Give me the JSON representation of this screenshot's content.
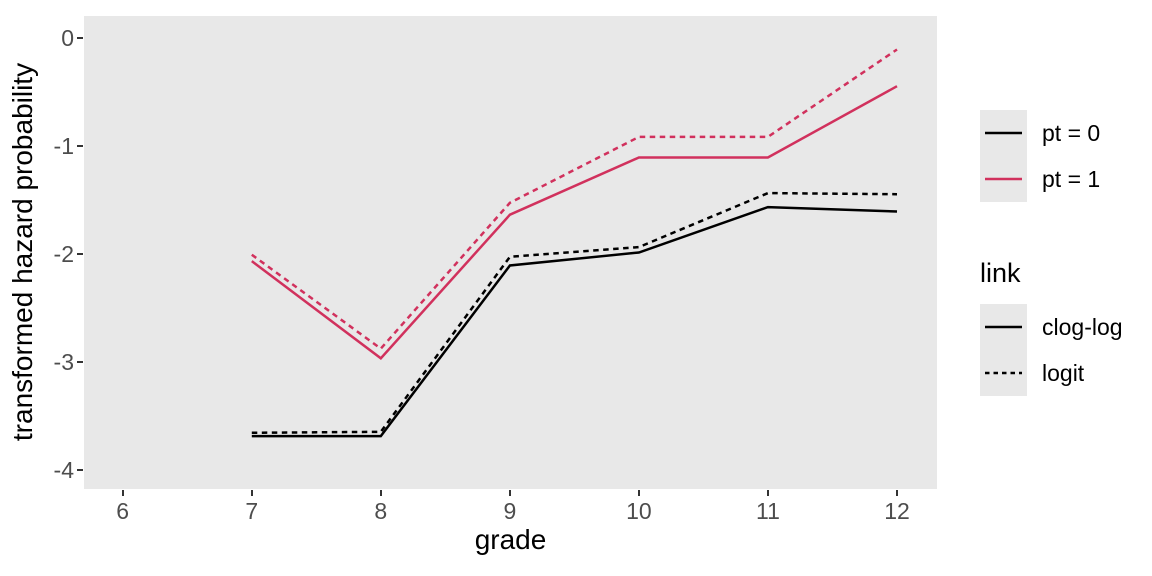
{
  "figure": {
    "background": "#FFFFFF",
    "panel_bg": "#E8E8E8",
    "tick_color": "#333333",
    "tick_label_color": "#4D4D4D",
    "black": "#000000",
    "red": "#D1315D"
  },
  "chart_data": {
    "type": "line",
    "title": "",
    "xlabel": "grade",
    "ylabel": "transformed hazard probability",
    "x": [
      7,
      8,
      9,
      10,
      11,
      12
    ],
    "x_ticks": [
      "6",
      "7",
      "8",
      "9",
      "10",
      "11",
      "12"
    ],
    "x_tick_values": [
      6,
      7,
      8,
      9,
      10,
      11,
      12
    ],
    "y_ticks": [
      "0",
      "-1",
      "-2",
      "-3",
      "-4"
    ],
    "y_tick_values": [
      0,
      -1,
      -2,
      -3,
      -4
    ],
    "xlim": [
      5.7,
      12.31
    ],
    "ylim": [
      -4.18,
      0.2
    ],
    "grid": false,
    "legend_position": "right",
    "series": [
      {
        "name": "pt = 0, clog-log",
        "pt": "0",
        "link": "clog-log",
        "color": "#000000",
        "dash": "solid",
        "values": [
          -3.69,
          -3.69,
          -2.11,
          -1.99,
          -1.57,
          -1.61
        ]
      },
      {
        "name": "pt = 0, logit",
        "pt": "0",
        "link": "logit",
        "color": "#000000",
        "dash": "dashed",
        "values": [
          -3.66,
          -3.65,
          -2.03,
          -1.94,
          -1.44,
          -1.45
        ]
      },
      {
        "name": "pt = 1, clog-log",
        "pt": "1",
        "link": "clog-log",
        "color": "#D1315D",
        "dash": "solid",
        "values": [
          -2.07,
          -2.97,
          -1.64,
          -1.11,
          -1.11,
          -0.45
        ]
      },
      {
        "name": "pt = 1, logit",
        "pt": "1",
        "link": "logit",
        "color": "#D1315D",
        "dash": "dashed",
        "values": [
          -2.01,
          -2.88,
          -1.53,
          -0.92,
          -0.92,
          -0.11
        ]
      }
    ]
  },
  "legends": [
    {
      "title": "",
      "entries": [
        {
          "label": "pt = 0",
          "color": "#000000",
          "dash": "solid"
        },
        {
          "label": "pt = 1",
          "color": "#D1315D",
          "dash": "solid"
        }
      ]
    },
    {
      "title": "link",
      "entries": [
        {
          "label": "clog-log",
          "color": "#000000",
          "dash": "solid"
        },
        {
          "label": "logit",
          "color": "#000000",
          "dash": "dashed"
        }
      ]
    }
  ]
}
